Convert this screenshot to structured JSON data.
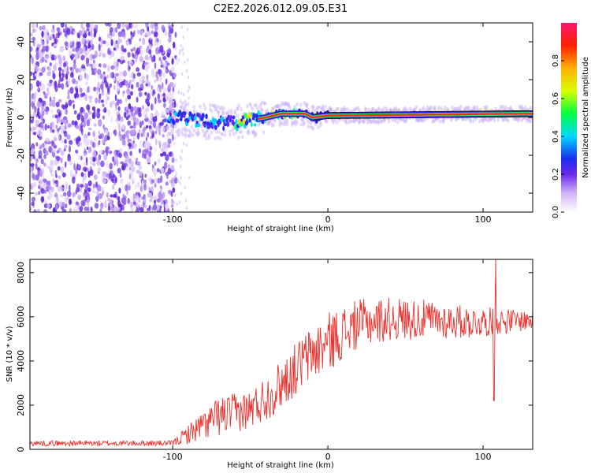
{
  "title": "C2E2.2026.012.09.05.E31",
  "chart_data": [
    {
      "type": "heatmap",
      "xlabel": "Height of straight line (km)",
      "ylabel": "Frequency (Hz)",
      "xlim": [
        -192,
        132
      ],
      "ylim": [
        -50,
        50
      ],
      "xticks": [
        -100,
        0,
        100
      ],
      "yticks": [
        -40,
        -20,
        0,
        20,
        40
      ],
      "noise_region_x": [
        -192,
        -100
      ],
      "signal_start_x": -103,
      "signal_line_hz": [
        {
          "x": -100,
          "hz": 0
        },
        {
          "x": -80,
          "hz": -2
        },
        {
          "x": -60,
          "hz": -3
        },
        {
          "x": -40,
          "hz": 0
        },
        {
          "x": -30,
          "hz": 2
        },
        {
          "x": -15,
          "hz": 2
        },
        {
          "x": -10,
          "hz": 0
        },
        {
          "x": 0,
          "hz": 1
        },
        {
          "x": 132,
          "hz": 2
        }
      ],
      "colorbar": {
        "label": "Normalized spectral amplitude",
        "range": [
          0.0,
          1.0
        ],
        "ticks": [
          0.0,
          0.2,
          0.4,
          0.6,
          0.8
        ]
      }
    },
    {
      "type": "line",
      "xlabel": "Height of straight line (km)",
      "ylabel": "SNR (10 * v/v)",
      "xlim": [
        -192,
        132
      ],
      "ylim": [
        0,
        8600
      ],
      "xticks": [
        -100,
        0,
        100
      ],
      "yticks": [
        0,
        2000,
        4000,
        6000,
        8000
      ],
      "color": "#e8322e",
      "envelope": [
        {
          "x": -192,
          "base": 150,
          "amp": 250
        },
        {
          "x": -100,
          "base": 150,
          "amp": 250
        },
        {
          "x": -90,
          "base": 250,
          "amp": 900
        },
        {
          "x": -70,
          "base": 600,
          "amp": 1800
        },
        {
          "x": -50,
          "base": 900,
          "amp": 1800
        },
        {
          "x": -35,
          "base": 1500,
          "amp": 2200
        },
        {
          "x": -15,
          "base": 2800,
          "amp": 2500
        },
        {
          "x": 0,
          "base": 3500,
          "amp": 2700
        },
        {
          "x": 20,
          "base": 4600,
          "amp": 2200
        },
        {
          "x": 40,
          "base": 4900,
          "amp": 2000
        },
        {
          "x": 60,
          "base": 5000,
          "amp": 1800
        },
        {
          "x": 90,
          "base": 5000,
          "amp": 1500
        },
        {
          "x": 132,
          "base": 5400,
          "amp": 900
        }
      ],
      "features": [
        {
          "x": 107,
          "value": 2200
        },
        {
          "x": 108,
          "value": 8600
        }
      ]
    }
  ]
}
